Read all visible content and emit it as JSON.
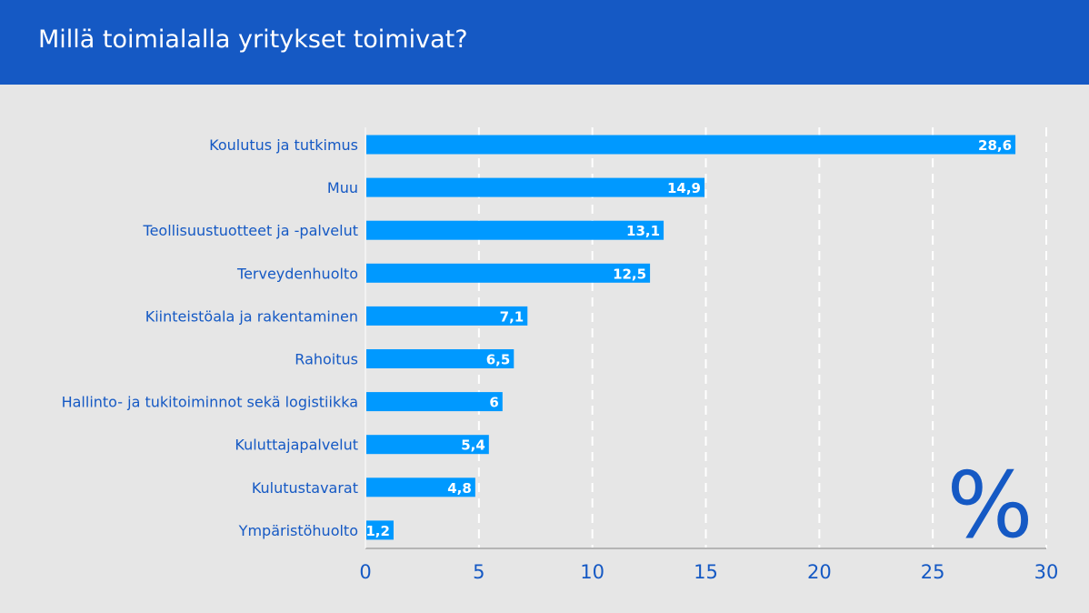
{
  "header": {
    "title": "Millä toimialalla yritykset toimivat?"
  },
  "unit_symbol": "%",
  "colors": {
    "header_bg": "#1559c4",
    "background": "#e6e6e6",
    "bar": "#0099ff",
    "label_text": "#1559c4",
    "value_text": "#ffffff",
    "grid": "#ffffff",
    "axis": "#b5b5b5"
  },
  "chart_data": {
    "type": "bar",
    "orientation": "horizontal",
    "categories": [
      "Koulutus ja tutkimus",
      "Muu",
      "Teollisuustuotteet ja -palvelut",
      "Terveydenhuolto",
      "Kiinteistöala ja rakentaminen",
      "Rahoitus",
      "Hallinto- ja tukitoiminnot sekä logistiikka",
      "Kuluttajapalvelut",
      "Kulutustavarat",
      "Ympäristöhuolto"
    ],
    "values": [
      28.6,
      14.9,
      13.1,
      12.5,
      7.1,
      6.5,
      6,
      5.4,
      4.8,
      1.2
    ],
    "value_labels": [
      "28,6",
      "14,9",
      "13,1",
      "12,5",
      "7,1",
      "6,5",
      "6",
      "5,4",
      "4,8",
      "1,2"
    ],
    "xlim": [
      0,
      30
    ],
    "xticks": [
      "0",
      "5",
      "10",
      "15",
      "20",
      "25",
      "30"
    ],
    "grid": "vertical dashed",
    "legend": "none"
  }
}
